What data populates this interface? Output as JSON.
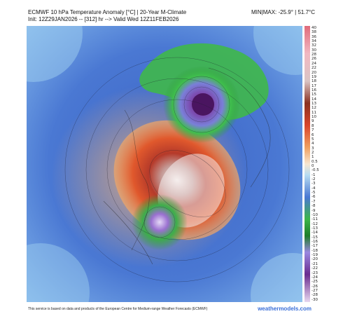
{
  "header": {
    "title_line1": "ECMWF 10 hPa Temperature Anomaly [°C] | 20-Year M-Climate",
    "title_line2": "Init: 12Z29JAN2026 -- [312] hr --> Valid Wed 12Z11FEB2026",
    "minmax": "MIN|MAX: -25.9° | 51.7°C"
  },
  "colorbar": {
    "ticks": [
      "40",
      "38",
      "36",
      "34",
      "32",
      "30",
      "28",
      "26",
      "24",
      "22",
      "20",
      "19",
      "18",
      "17",
      "16",
      "15",
      "14",
      "13",
      "12",
      "11",
      "10",
      "9",
      "8",
      "7",
      "6",
      "5",
      "4",
      "3",
      "2",
      "1",
      "0.5",
      "0",
      "-0.5",
      "-1",
      "-2",
      "-3",
      "-4",
      "-5",
      "-6",
      "-7",
      "-8",
      "-9",
      "-10",
      "-11",
      "-12",
      "-13",
      "-14",
      "-15",
      "-16",
      "-17",
      "-18",
      "-19",
      "-20",
      "-21",
      "-22",
      "-23",
      "-24",
      "-25",
      "-26",
      "-27",
      "-28",
      "-30"
    ]
  },
  "footer": {
    "disclaimer": "This service is based on data and products of the European Centre for Medium-range Weather Forecasts (ECMWF)",
    "brand": "weathermodels.com"
  },
  "colors": {
    "warm_core": "#f2ece8",
    "warm": "#d9442a",
    "orange": "#f0a060",
    "cool": "#3b68c9",
    "green": "#3cb54a",
    "purple": "#6a2b90"
  }
}
